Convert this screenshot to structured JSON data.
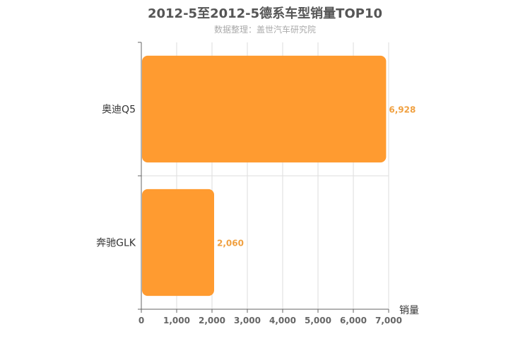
{
  "chart_data": {
    "type": "bar",
    "orientation": "horizontal",
    "title": "2012-5至2012-5德系车型销量TOP10",
    "subtitle": "数据整理：盖世汽车研究院",
    "categories": [
      "奥迪Q5",
      "奔驰GLK"
    ],
    "series": [
      {
        "values": [
          6928,
          2060
        ],
        "data_labels": [
          "6,928",
          "2,060"
        ]
      }
    ],
    "xlabel": "销量",
    "xlim": [
      0,
      7000
    ],
    "xticks": [
      0,
      1000,
      2000,
      3000,
      4000,
      5000,
      6000,
      7000
    ],
    "xtick_labels": [
      "0",
      "1,000",
      "2,000",
      "3,000",
      "4,000",
      "5,000",
      "6,000",
      "7,000"
    ],
    "grid": true,
    "bar_color": "#ff9b30"
  }
}
